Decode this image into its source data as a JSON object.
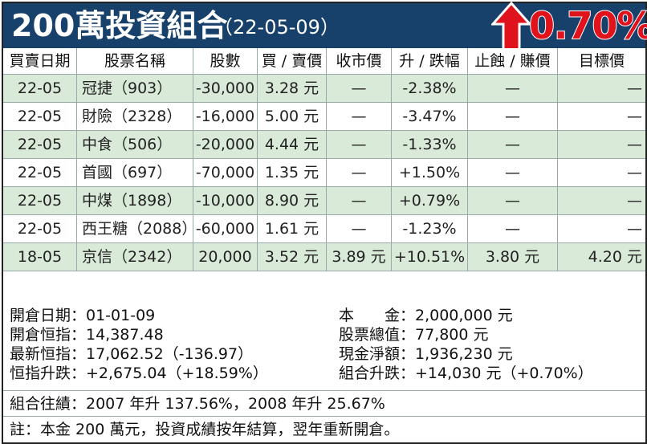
{
  "header": {
    "title": "200萬投資組合",
    "date": "（22-05-09）",
    "change_badge": "0.70%",
    "badge_color": "#e0121b",
    "header_bg": "#17406b",
    "row_highlight": "#d9ead9"
  },
  "columns": [
    "買賣日期",
    "股票名稱",
    "股數",
    "買 / 賣價",
    "收市價",
    "升 / 跌幅",
    "止蝕 / 賺價",
    "目標價"
  ],
  "rows": [
    [
      "22-05",
      "冠捷（903）",
      "-30,000",
      "3.28 元",
      "—",
      "-2.38%",
      "—",
      "—"
    ],
    [
      "22-05",
      "財險（2328）",
      "-16,000",
      "5.00 元",
      "—",
      "-3.47%",
      "—",
      "—"
    ],
    [
      "22-05",
      "中食（506）",
      "-20,000",
      "4.44 元",
      "—",
      "-1.33%",
      "—",
      "—"
    ],
    [
      "22-05",
      "首國（697）",
      "-70,000",
      "1.35 元",
      "—",
      "+1.50%",
      "—",
      "—"
    ],
    [
      "22-05",
      "中煤（1898）",
      "-10,000",
      "8.90 元",
      "—",
      "+0.79%",
      "—",
      "—"
    ],
    [
      "22-05",
      "西王糖（2088）",
      "-60,000",
      "1.61 元",
      "—",
      "-1.23%",
      "—",
      "—"
    ],
    [
      "18-05",
      "京信（2342）",
      "20,000",
      "3.52 元",
      "3.89 元",
      "+10.51%",
      "3.80 元",
      "4.20 元"
    ]
  ],
  "summary": {
    "left": [
      "開倉日期：01-01-09",
      "開倉恒指：14,387.48",
      "最新恒指：17,062.52（-136.97）",
      "恒指升跌：+2,675.04（+18.59%）"
    ],
    "right": [
      "本　　金：2,000,000 元",
      "股票總值：77,800 元",
      "現金淨額：1,936,230 元",
      "組合升跌：+14,030 元（+0.70%）"
    ]
  },
  "footer": {
    "history": "組合往績：2007 年升 137.56%，2008 年升 25.67%",
    "note": "註：本金 200 萬元，投資成績按年結算，翌年重新開倉。"
  }
}
